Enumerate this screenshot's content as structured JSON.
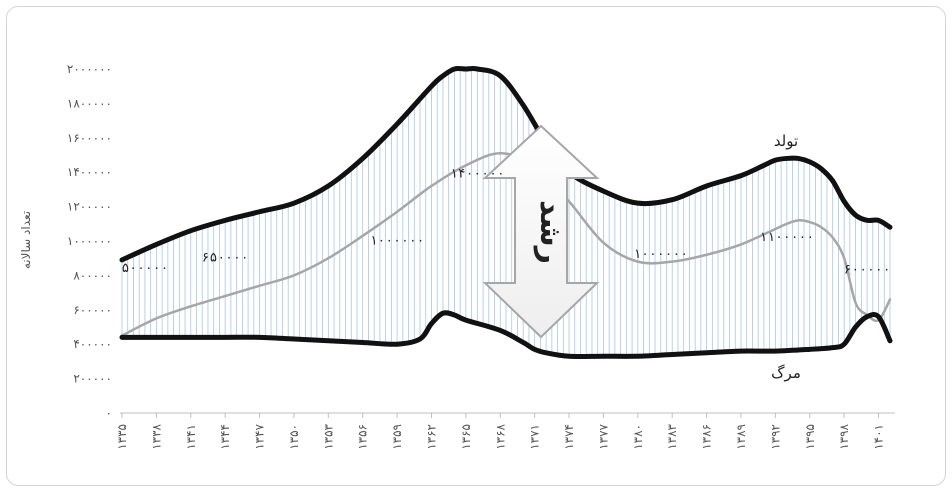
{
  "chart_data": {
    "type": "line",
    "ylabel": "تعداد سالانه",
    "ylim": [
      0,
      2000000
    ],
    "yticks": [
      0,
      200000,
      400000,
      600000,
      800000,
      1000000,
      1200000,
      1400000,
      1600000,
      1800000,
      2000000
    ],
    "ytick_labels": [
      "۰",
      "۲۰۰۰۰۰",
      "۴۰۰۰۰۰",
      "۶۰۰۰۰۰",
      "۸۰۰۰۰۰",
      "۱۰۰۰۰۰۰",
      "۱۲۰۰۰۰۰",
      "۱۴۰۰۰۰۰",
      "۱۶۰۰۰۰۰",
      "۱۸۰۰۰۰۰",
      "۲۰۰۰۰۰۰"
    ],
    "xlim": [
      1335,
      1402
    ],
    "xticks": [
      1335,
      1338,
      1341,
      1344,
      1347,
      1350,
      1353,
      1356,
      1359,
      1362,
      1365,
      1368,
      1371,
      1374,
      1377,
      1380,
      1383,
      1386,
      1389,
      1392,
      1395,
      1398,
      1401
    ],
    "xtick_labels": [
      "۱۳۳۵",
      "۱۳۳۸",
      "۱۳۴۱",
      "۱۳۴۴",
      "۱۳۴۷",
      "۱۳۵۰",
      "۱۳۵۳",
      "۱۳۵۶",
      "۱۳۵۹",
      "۱۳۶۲",
      "۱۳۶۵",
      "۱۳۶۸",
      "۱۳۷۱",
      "۱۳۷۴",
      "۱۳۷۷",
      "۱۳۸۰",
      "۱۳۸۳",
      "۱۳۸۶",
      "۱۳۸۹",
      "۱۳۹۲",
      "۱۳۹۵",
      "۱۳۹۸",
      "۱۴۰۱"
    ],
    "grid": false,
    "series": [
      {
        "name": "تولد",
        "color": "#111111",
        "x": [
          1335,
          1338,
          1341,
          1344,
          1347,
          1350,
          1353,
          1356,
          1359,
          1362,
          1363,
          1364,
          1365,
          1366,
          1368,
          1370,
          1372,
          1374,
          1377,
          1380,
          1383,
          1386,
          1389,
          1391,
          1392,
          1393,
          1394,
          1395,
          1396,
          1397,
          1398,
          1399,
          1400,
          1401,
          1402
        ],
        "values": [
          890000,
          980000,
          1060000,
          1120000,
          1170000,
          1220000,
          1320000,
          1480000,
          1680000,
          1900000,
          1960000,
          2000000,
          2000000,
          2000000,
          1960000,
          1790000,
          1570000,
          1400000,
          1290000,
          1220000,
          1240000,
          1320000,
          1380000,
          1440000,
          1470000,
          1480000,
          1480000,
          1460000,
          1420000,
          1350000,
          1230000,
          1150000,
          1120000,
          1120000,
          1080000
        ]
      },
      {
        "name": "",
        "color": "#a6a6a6",
        "x": [
          1335,
          1338,
          1341,
          1344,
          1347,
          1350,
          1353,
          1356,
          1359,
          1362,
          1365,
          1368,
          1371,
          1374,
          1377,
          1380,
          1383,
          1386,
          1389,
          1392,
          1393,
          1394,
          1395,
          1396,
          1397,
          1398,
          1399,
          1400,
          1401,
          1402
        ],
        "values": [
          450000,
          550000,
          620000,
          680000,
          740000,
          800000,
          900000,
          1030000,
          1170000,
          1320000,
          1440000,
          1510000,
          1440000,
          1230000,
          990000,
          880000,
          880000,
          920000,
          980000,
          1070000,
          1100000,
          1120000,
          1110000,
          1080000,
          1020000,
          900000,
          640000,
          570000,
          540000,
          660000
        ]
      },
      {
        "name": "مرگ",
        "color": "#111111",
        "x": [
          1335,
          1338,
          1341,
          1344,
          1347,
          1350,
          1353,
          1356,
          1359,
          1361,
          1362,
          1363,
          1364,
          1365,
          1368,
          1370,
          1371,
          1372,
          1374,
          1377,
          1380,
          1383,
          1386,
          1389,
          1392,
          1395,
          1397,
          1398,
          1399,
          1400,
          1401,
          1402
        ],
        "values": [
          440000,
          440000,
          440000,
          440000,
          440000,
          430000,
          420000,
          410000,
          400000,
          430000,
          520000,
          580000,
          570000,
          540000,
          480000,
          410000,
          370000,
          350000,
          330000,
          330000,
          330000,
          340000,
          350000,
          360000,
          360000,
          370000,
          380000,
          400000,
          500000,
          560000,
          560000,
          420000
        ]
      }
    ],
    "annotations": [
      {
        "text": "۵۰۰۰۰۰",
        "x": 1337,
        "y": 820000
      },
      {
        "text": "۶۵۰۰۰۰",
        "x": 1344,
        "y": 880000
      },
      {
        "text": "۱۰۰۰۰۰۰",
        "x": 1359,
        "y": 980000
      },
      {
        "text": "۱۴۰۰۰۰۰",
        "x": 1366,
        "y": 1370000
      },
      {
        "text": "۱۰۰۰۰۰۰",
        "x": 1382,
        "y": 900000
      },
      {
        "text": "۱۱۰۰۰۰۰",
        "x": 1393,
        "y": 1000000
      },
      {
        "text": "۶۰۰۰۰۰",
        "x": 1400,
        "y": 810000
      }
    ],
    "growth_label": "رشد"
  }
}
